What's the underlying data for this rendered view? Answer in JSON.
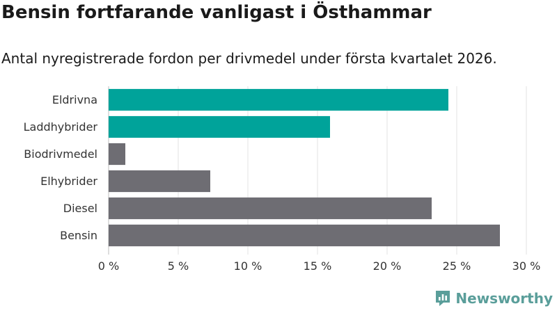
{
  "chart_data": {
    "type": "bar",
    "orientation": "horizontal",
    "title": "Bensin fortfarande vanligast i Östhammar",
    "subtitle": "Antal nyregistrerade fordon per drivmedel under första kvartalet 2026.",
    "categories": [
      "Eldrivna",
      "Laddhybrider",
      "Biodrivmedel",
      "Elhybrider",
      "Diesel",
      "Bensin"
    ],
    "values": [
      24.4,
      15.9,
      1.2,
      7.3,
      23.2,
      28.1
    ],
    "bar_colors": [
      "#00a39a",
      "#00a39a",
      "#6e6d73",
      "#6e6d73",
      "#6e6d73",
      "#6e6d73"
    ],
    "xlim": [
      0,
      30
    ],
    "x_ticks": [
      0,
      5,
      10,
      15,
      20,
      25,
      30
    ],
    "x_tick_labels": [
      "0 %",
      "5 %",
      "10 %",
      "15 %",
      "20 %",
      "25 %",
      "30 %"
    ],
    "xlabel": "",
    "ylabel": "",
    "grid": true
  },
  "brand": {
    "name": "Newsworthy",
    "color": "#5a9e9a",
    "icon": "newsworthy-logo-icon"
  }
}
